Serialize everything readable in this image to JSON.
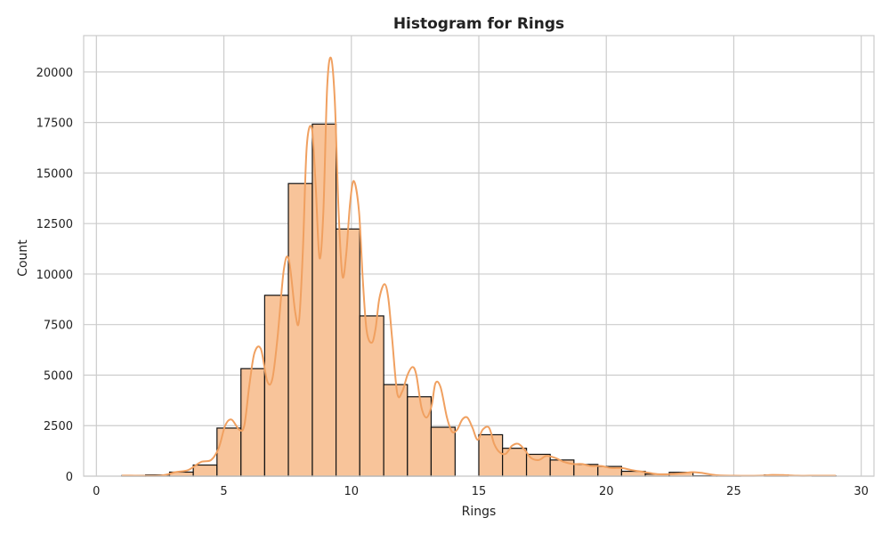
{
  "chart_data": {
    "type": "bar",
    "title": "Histogram for Rings",
    "xlabel": "Rings",
    "ylabel": "Count",
    "xlim": [
      -0.5,
      30.5
    ],
    "ylim": [
      0,
      21800
    ],
    "x_ticks": [
      0,
      5,
      10,
      15,
      20,
      25,
      30
    ],
    "y_ticks": [
      0,
      2500,
      5000,
      7500,
      10000,
      12500,
      15000,
      17500,
      20000
    ],
    "grid": true,
    "colors": {
      "bar_fill": "#f8c49a",
      "bar_edge": "#111111",
      "kde_line": "#f0a060",
      "grid": "#cccccc",
      "frame": "#cccccc"
    },
    "bins": [
      {
        "x0": 1.0,
        "x1": 1.93,
        "count": 30
      },
      {
        "x0": 1.93,
        "x1": 2.87,
        "count": 60
      },
      {
        "x0": 2.87,
        "x1": 3.8,
        "count": 200
      },
      {
        "x0": 3.8,
        "x1": 4.73,
        "count": 550
      },
      {
        "x0": 4.73,
        "x1": 5.67,
        "count": 2380
      },
      {
        "x0": 5.67,
        "x1": 6.6,
        "count": 5320
      },
      {
        "x0": 6.6,
        "x1": 7.53,
        "count": 8950
      },
      {
        "x0": 7.53,
        "x1": 8.47,
        "count": 14480
      },
      {
        "x0": 8.47,
        "x1": 9.4,
        "count": 17420
      },
      {
        "x0": 9.4,
        "x1": 10.33,
        "count": 12230
      },
      {
        "x0": 10.33,
        "x1": 11.27,
        "count": 7930
      },
      {
        "x0": 11.27,
        "x1": 12.2,
        "count": 4530
      },
      {
        "x0": 12.2,
        "x1": 13.13,
        "count": 3930
      },
      {
        "x0": 13.13,
        "x1": 14.07,
        "count": 2420
      },
      {
        "x0": 14.07,
        "x1": 15.0,
        "count": 0
      },
      {
        "x0": 15.0,
        "x1": 15.93,
        "count": 2050
      },
      {
        "x0": 15.93,
        "x1": 16.87,
        "count": 1380
      },
      {
        "x0": 16.87,
        "x1": 17.8,
        "count": 1080
      },
      {
        "x0": 17.8,
        "x1": 18.73,
        "count": 800
      },
      {
        "x0": 18.73,
        "x1": 19.67,
        "count": 580
      },
      {
        "x0": 19.67,
        "x1": 20.6,
        "count": 480
      },
      {
        "x0": 20.6,
        "x1": 21.53,
        "count": 240
      },
      {
        "x0": 21.53,
        "x1": 22.47,
        "count": 100
      },
      {
        "x0": 22.47,
        "x1": 23.4,
        "count": 190
      },
      {
        "x0": 23.4,
        "x1": 24.33,
        "count": 20
      },
      {
        "x0": 24.33,
        "x1": 25.27,
        "count": 10
      },
      {
        "x0": 25.27,
        "x1": 26.2,
        "count": 0
      },
      {
        "x0": 26.2,
        "x1": 27.13,
        "count": 60
      },
      {
        "x0": 27.13,
        "x1": 28.07,
        "count": 0
      },
      {
        "x0": 28.07,
        "x1": 29.0,
        "count": 20
      }
    ],
    "kde": {
      "x": [
        1.0,
        2.5,
        3.1,
        3.6,
        4.1,
        4.5,
        4.8,
        5.05,
        5.3,
        5.6,
        5.8,
        6.0,
        6.2,
        6.45,
        6.7,
        6.9,
        7.1,
        7.35,
        7.55,
        7.8,
        7.95,
        8.1,
        8.25,
        8.45,
        8.6,
        8.75,
        8.9,
        9.05,
        9.2,
        9.35,
        9.5,
        9.65,
        9.8,
        9.95,
        10.1,
        10.3,
        10.45,
        10.6,
        10.8,
        10.95,
        11.1,
        11.3,
        11.45,
        11.6,
        11.8,
        12.0,
        12.2,
        12.4,
        12.55,
        12.75,
        12.95,
        13.15,
        13.3,
        13.5,
        13.75,
        13.95,
        14.15,
        14.35,
        14.55,
        14.75,
        14.95,
        15.15,
        15.4,
        15.6,
        15.8,
        16.05,
        16.3,
        16.55,
        16.8,
        17.05,
        17.35,
        17.65,
        18.0,
        18.35,
        18.7,
        19.05,
        19.4,
        19.8,
        20.2,
        20.6,
        21.0,
        21.5,
        22.0,
        22.5,
        23.0,
        23.4,
        23.8,
        24.3,
        25.0,
        26.0,
        26.5,
        27.0,
        27.5,
        28.0,
        29.0
      ],
      "y": [
        30,
        30,
        200,
        300,
        700,
        800,
        1400,
        2500,
        2800,
        2300,
        2500,
        4500,
        6100,
        6300,
        4700,
        4800,
        6800,
        10200,
        10700,
        8100,
        7700,
        11200,
        16300,
        17200,
        14400,
        10800,
        13000,
        19200,
        20700,
        18600,
        13100,
        9900,
        11000,
        13500,
        14600,
        13100,
        9700,
        7200,
        6600,
        7300,
        8800,
        9500,
        8800,
        6800,
        4100,
        4200,
        5000,
        5400,
        5000,
        3400,
        2900,
        3500,
        4600,
        4400,
        2900,
        2200,
        2300,
        2800,
        2900,
        2400,
        1800,
        2300,
        2400,
        1600,
        1200,
        1100,
        1500,
        1600,
        1300,
        900,
        800,
        1000,
        900,
        700,
        600,
        600,
        500,
        500,
        400,
        400,
        300,
        200,
        100,
        100,
        150,
        200,
        150,
        50,
        20,
        20,
        60,
        50,
        20,
        20,
        20
      ]
    }
  }
}
